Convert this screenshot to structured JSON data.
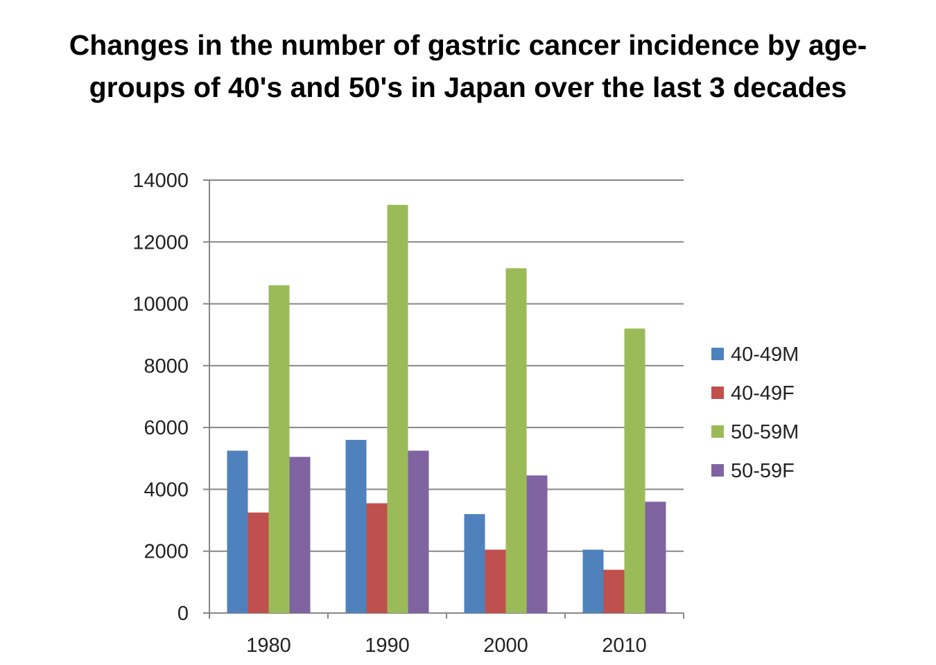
{
  "title_lines": [
    "Changes in the number of gastric cancer incidence by age-",
    "groups of 40's and 50's in Japan over the last 3 decades"
  ],
  "colors": {
    "40-49M": "#4F81BD",
    "40-49F": "#C0504D",
    "50-59M": "#9BBB59",
    "50-59F": "#8064A2"
  },
  "chart_data": {
    "type": "bar",
    "title": "Changes in the number of gastric cancer incidence by age-groups of 40's and 50's in Japan over the last 3 decades",
    "categories": [
      "1980",
      "1990",
      "2000",
      "2010"
    ],
    "series": [
      {
        "name": "40-49M",
        "values": [
          5250,
          5600,
          3200,
          2050
        ]
      },
      {
        "name": "40-49F",
        "values": [
          3250,
          3550,
          2050,
          1400
        ]
      },
      {
        "name": "50-59M",
        "values": [
          10600,
          13200,
          11150,
          9200
        ]
      },
      {
        "name": "50-59F",
        "values": [
          5050,
          5250,
          4450,
          3600
        ]
      }
    ],
    "yticks": [
      "0",
      "2000",
      "4000",
      "6000",
      "8000",
      "10000",
      "12000",
      "14000"
    ],
    "ylim": [
      0,
      14000
    ],
    "xlabel": "",
    "ylabel": "",
    "grid": true,
    "legend": "right"
  }
}
